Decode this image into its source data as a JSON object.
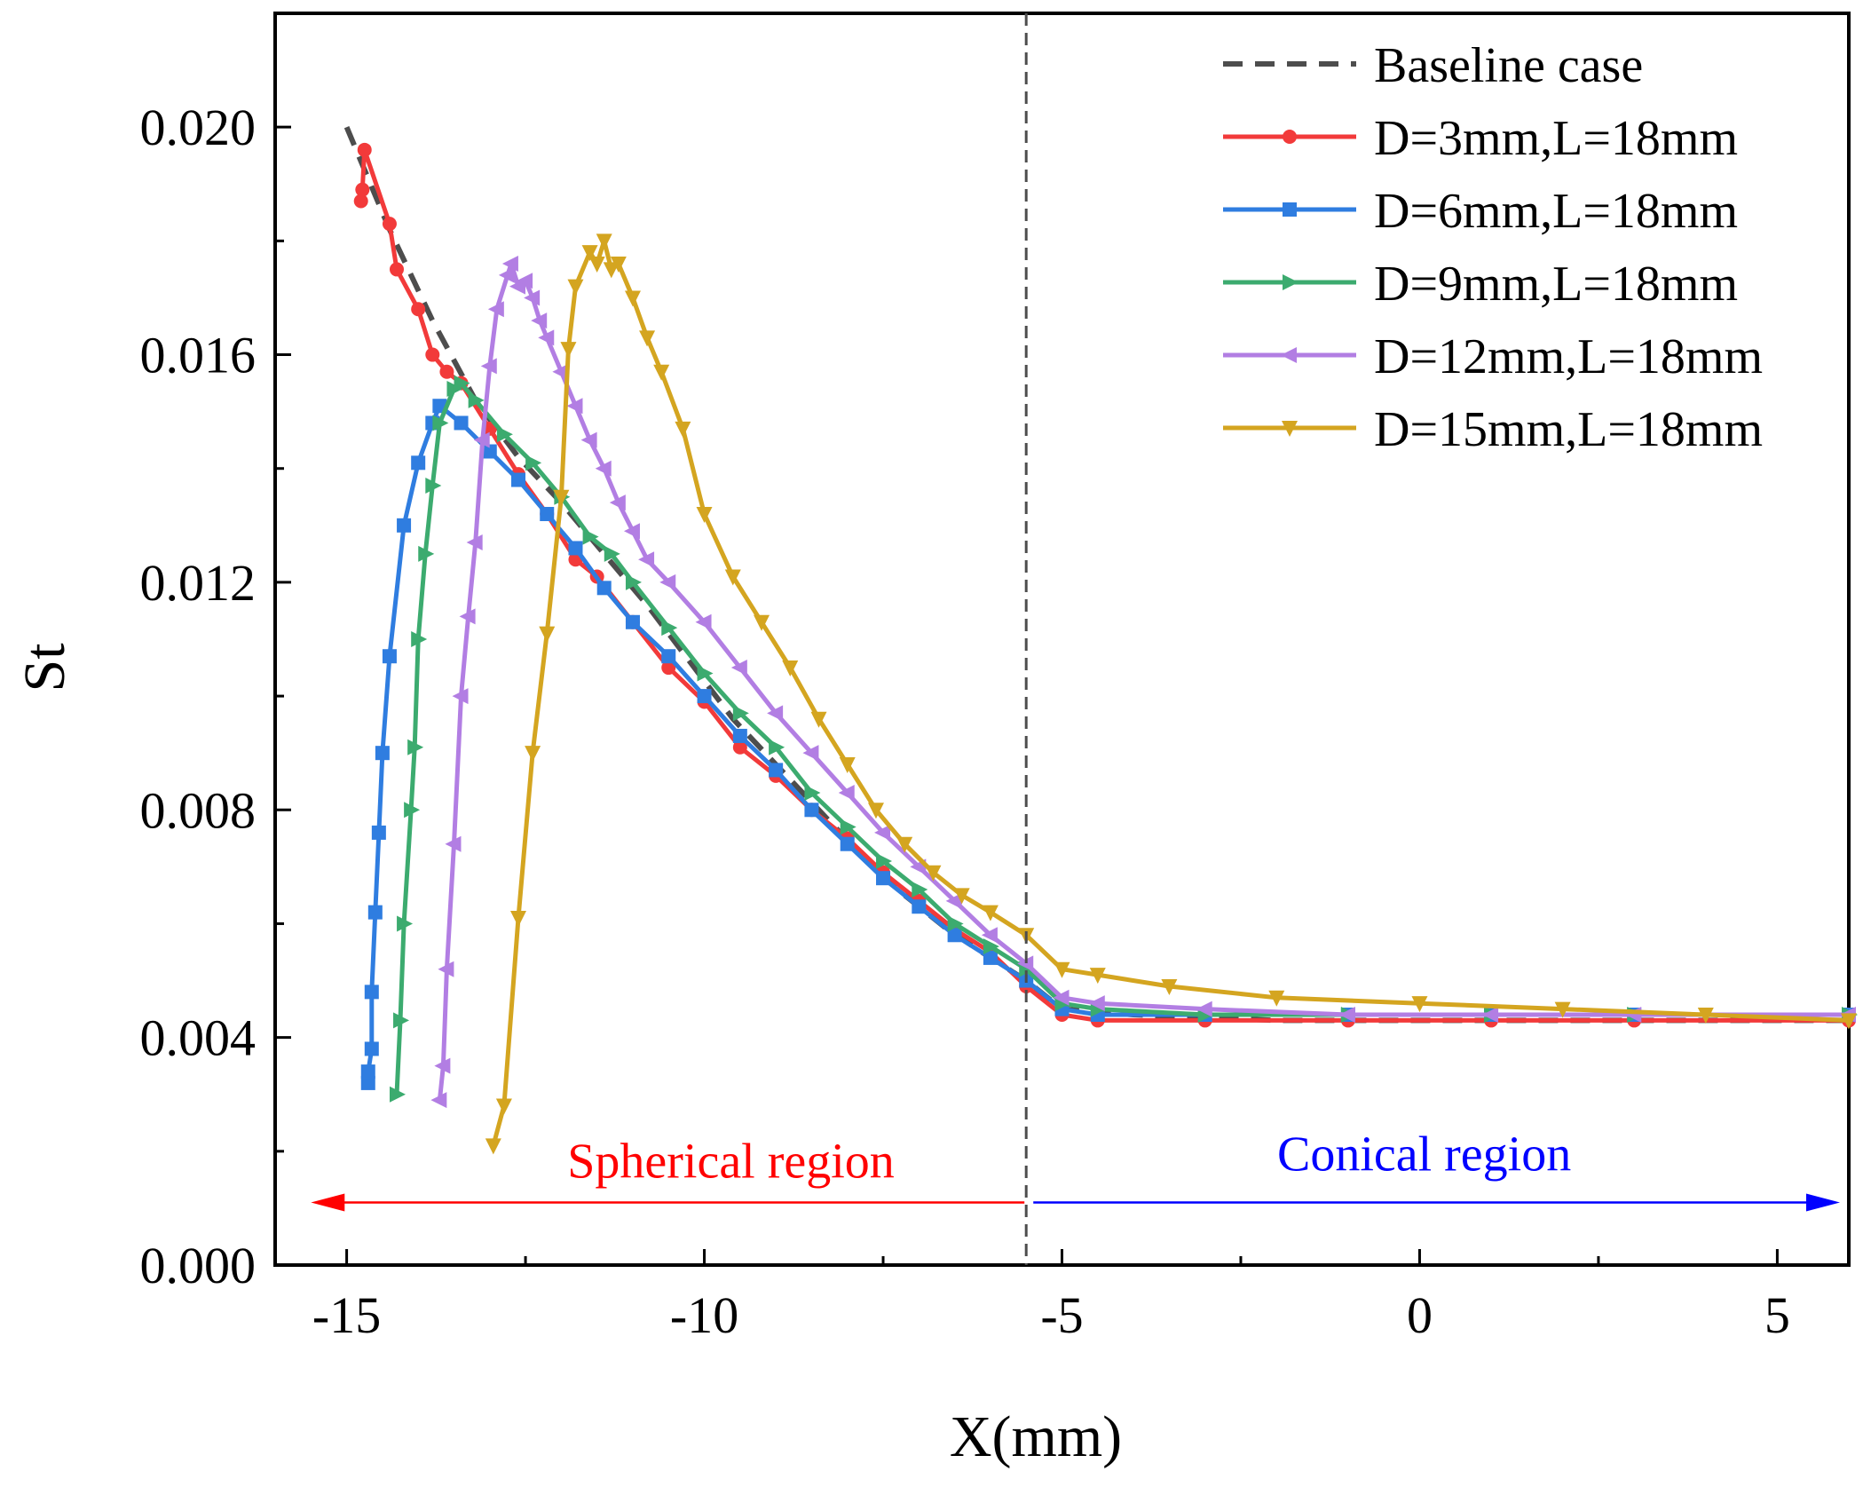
{
  "chart_data": {
    "type": "line",
    "xlabel": "X(mm)",
    "ylabel": "St",
    "xlim": [
      -16,
      6
    ],
    "ylim": [
      0,
      0.022
    ],
    "x_ticks": [
      -15,
      -10,
      -5,
      0,
      5
    ],
    "x_tick_labels": [
      "-15",
      "-10",
      "-5",
      "0",
      "5"
    ],
    "y_ticks": [
      0,
      0.004,
      0.008,
      0.012,
      0.016,
      0.02
    ],
    "y_tick_labels": [
      "0.000",
      "0.004",
      "0.008",
      "0.012",
      "0.016",
      "0.020"
    ],
    "divider_x": -5.5,
    "legend_position": "top-right",
    "annotations": {
      "spherical": {
        "text": "Spherical region",
        "x_from": -5.5,
        "x_to": -15.5,
        "y": 0.0011,
        "color": "#ff0000"
      },
      "conical": {
        "text": "Conical region",
        "x_from": -5.5,
        "x_to": 6,
        "y": 0.0011,
        "color": "#0000ff"
      }
    },
    "series": [
      {
        "name": "Baseline case",
        "color": "#4d4d4d",
        "style": "dashed",
        "marker": "none",
        "points": [
          [
            -15.0,
            0.02
          ],
          [
            -14.4,
            0.0182
          ],
          [
            -13.8,
            0.0166
          ],
          [
            -13.2,
            0.0152
          ],
          [
            -12.6,
            0.0142
          ],
          [
            -12.0,
            0.0134
          ],
          [
            -11.4,
            0.0125
          ],
          [
            -10.8,
            0.0116
          ],
          [
            -10.2,
            0.0106
          ],
          [
            -9.6,
            0.0096
          ],
          [
            -9.0,
            0.0088
          ],
          [
            -8.4,
            0.008
          ],
          [
            -7.8,
            0.0072
          ],
          [
            -7.2,
            0.0065
          ],
          [
            -6.6,
            0.0059
          ],
          [
            -6.0,
            0.0054
          ],
          [
            -5.5,
            0.005
          ],
          [
            -5.0,
            0.0045
          ],
          [
            -4.0,
            0.0044
          ],
          [
            -2.0,
            0.0043
          ],
          [
            0.0,
            0.0043
          ],
          [
            2.0,
            0.0043
          ],
          [
            4.0,
            0.0043
          ],
          [
            6.0,
            0.0043
          ]
        ]
      },
      {
        "name": "D=3mm,L=18mm",
        "color": "#f23a3a",
        "style": "solid",
        "marker": "circle",
        "points": [
          [
            -14.8,
            0.0187
          ],
          [
            -14.78,
            0.0189
          ],
          [
            -14.75,
            0.0196
          ],
          [
            -14.4,
            0.0183
          ],
          [
            -14.3,
            0.0175
          ],
          [
            -14.0,
            0.0168
          ],
          [
            -13.8,
            0.016
          ],
          [
            -13.6,
            0.0157
          ],
          [
            -13.4,
            0.0155
          ],
          [
            -13.0,
            0.0147
          ],
          [
            -12.6,
            0.0139
          ],
          [
            -12.2,
            0.0132
          ],
          [
            -11.8,
            0.0124
          ],
          [
            -11.5,
            0.0121
          ],
          [
            -11.0,
            0.0113
          ],
          [
            -10.5,
            0.0105
          ],
          [
            -10.0,
            0.0099
          ],
          [
            -9.5,
            0.0091
          ],
          [
            -9.0,
            0.0086
          ],
          [
            -8.5,
            0.008
          ],
          [
            -8.0,
            0.0075
          ],
          [
            -7.5,
            0.0069
          ],
          [
            -7.0,
            0.0064
          ],
          [
            -6.5,
            0.0059
          ],
          [
            -6.0,
            0.0055
          ],
          [
            -5.5,
            0.0049
          ],
          [
            -5.0,
            0.0044
          ],
          [
            -4.5,
            0.0043
          ],
          [
            -3.0,
            0.0043
          ],
          [
            -1.0,
            0.0043
          ],
          [
            1.0,
            0.0043
          ],
          [
            3.0,
            0.0043
          ],
          [
            6.0,
            0.0043
          ]
        ]
      },
      {
        "name": "D=6mm,L=18mm",
        "color": "#2f7de0",
        "style": "solid",
        "marker": "square",
        "points": [
          [
            -14.7,
            0.0032
          ],
          [
            -14.7,
            0.0034
          ],
          [
            -14.65,
            0.0038
          ],
          [
            -14.65,
            0.0048
          ],
          [
            -14.6,
            0.0062
          ],
          [
            -14.55,
            0.0076
          ],
          [
            -14.5,
            0.009
          ],
          [
            -14.4,
            0.0107
          ],
          [
            -14.2,
            0.013
          ],
          [
            -14.0,
            0.0141
          ],
          [
            -13.8,
            0.0148
          ],
          [
            -13.7,
            0.0151
          ],
          [
            -13.4,
            0.0148
          ],
          [
            -13.0,
            0.0143
          ],
          [
            -12.6,
            0.0138
          ],
          [
            -12.2,
            0.0132
          ],
          [
            -11.8,
            0.0126
          ],
          [
            -11.4,
            0.0119
          ],
          [
            -11.0,
            0.0113
          ],
          [
            -10.5,
            0.0107
          ],
          [
            -10.0,
            0.01
          ],
          [
            -9.5,
            0.0093
          ],
          [
            -9.0,
            0.0087
          ],
          [
            -8.5,
            0.008
          ],
          [
            -8.0,
            0.0074
          ],
          [
            -7.5,
            0.0068
          ],
          [
            -7.0,
            0.0063
          ],
          [
            -6.5,
            0.0058
          ],
          [
            -6.0,
            0.0054
          ],
          [
            -5.5,
            0.005
          ],
          [
            -5.0,
            0.0045
          ],
          [
            -4.5,
            0.0044
          ],
          [
            -3.0,
            0.0044
          ],
          [
            -1.0,
            0.0044
          ],
          [
            1.0,
            0.0044
          ],
          [
            3.0,
            0.0044
          ],
          [
            6.0,
            0.0044
          ]
        ]
      },
      {
        "name": "D=9mm,L=18mm",
        "color": "#3cab6f",
        "style": "solid",
        "marker": "triangle-right",
        "points": [
          [
            -14.3,
            0.003
          ],
          [
            -14.25,
            0.0043
          ],
          [
            -14.2,
            0.006
          ],
          [
            -14.1,
            0.008
          ],
          [
            -14.05,
            0.0091
          ],
          [
            -14.0,
            0.011
          ],
          [
            -13.9,
            0.0125
          ],
          [
            -13.8,
            0.0137
          ],
          [
            -13.7,
            0.0148
          ],
          [
            -13.5,
            0.0154
          ],
          [
            -13.4,
            0.0155
          ],
          [
            -13.2,
            0.0152
          ],
          [
            -12.8,
            0.0146
          ],
          [
            -12.4,
            0.0141
          ],
          [
            -12.0,
            0.0135
          ],
          [
            -11.6,
            0.0128
          ],
          [
            -11.3,
            0.0125
          ],
          [
            -11.0,
            0.012
          ],
          [
            -10.5,
            0.0112
          ],
          [
            -10.0,
            0.0104
          ],
          [
            -9.5,
            0.0097
          ],
          [
            -9.0,
            0.0091
          ],
          [
            -8.5,
            0.0083
          ],
          [
            -8.0,
            0.0077
          ],
          [
            -7.5,
            0.0071
          ],
          [
            -7.0,
            0.0066
          ],
          [
            -6.5,
            0.006
          ],
          [
            -6.0,
            0.0056
          ],
          [
            -5.5,
            0.0052
          ],
          [
            -5.0,
            0.0046
          ],
          [
            -4.5,
            0.0045
          ],
          [
            -3.0,
            0.0044
          ],
          [
            -1.0,
            0.0044
          ],
          [
            1.0,
            0.0044
          ],
          [
            3.0,
            0.0044
          ],
          [
            6.0,
            0.0044
          ]
        ]
      },
      {
        "name": "D=12mm,L=18mm",
        "color": "#b27ee3",
        "style": "solid",
        "marker": "triangle-left",
        "points": [
          [
            -13.7,
            0.0029
          ],
          [
            -13.65,
            0.0035
          ],
          [
            -13.6,
            0.0052
          ],
          [
            -13.5,
            0.0074
          ],
          [
            -13.4,
            0.01
          ],
          [
            -13.3,
            0.0114
          ],
          [
            -13.2,
            0.0127
          ],
          [
            -13.1,
            0.0145
          ],
          [
            -13.0,
            0.0158
          ],
          [
            -12.9,
            0.0168
          ],
          [
            -12.75,
            0.0174
          ],
          [
            -12.7,
            0.0176
          ],
          [
            -12.6,
            0.0172
          ],
          [
            -12.5,
            0.0173
          ],
          [
            -12.4,
            0.017
          ],
          [
            -12.3,
            0.0166
          ],
          [
            -12.2,
            0.0163
          ],
          [
            -12.0,
            0.0157
          ],
          [
            -11.8,
            0.0151
          ],
          [
            -11.6,
            0.0145
          ],
          [
            -11.4,
            0.014
          ],
          [
            -11.2,
            0.0134
          ],
          [
            -11.0,
            0.0129
          ],
          [
            -10.8,
            0.0124
          ],
          [
            -10.5,
            0.012
          ],
          [
            -10.0,
            0.0113
          ],
          [
            -9.5,
            0.0105
          ],
          [
            -9.0,
            0.0097
          ],
          [
            -8.5,
            0.009
          ],
          [
            -8.0,
            0.0083
          ],
          [
            -7.5,
            0.0076
          ],
          [
            -7.0,
            0.007
          ],
          [
            -6.5,
            0.0064
          ],
          [
            -6.0,
            0.0058
          ],
          [
            -5.5,
            0.0053
          ],
          [
            -5.0,
            0.0047
          ],
          [
            -4.5,
            0.0046
          ],
          [
            -3.0,
            0.0045
          ],
          [
            -1.0,
            0.0044
          ],
          [
            1.0,
            0.0044
          ],
          [
            3.0,
            0.0044
          ],
          [
            6.0,
            0.0044
          ]
        ]
      },
      {
        "name": "D=15mm,L=18mm",
        "color": "#d4a520",
        "style": "solid",
        "marker": "triangle-down",
        "points": [
          [
            -12.95,
            0.0021
          ],
          [
            -12.8,
            0.0028
          ],
          [
            -12.6,
            0.0061
          ],
          [
            -12.4,
            0.009
          ],
          [
            -12.2,
            0.0111
          ],
          [
            -12.0,
            0.0135
          ],
          [
            -11.9,
            0.0161
          ],
          [
            -11.8,
            0.0172
          ],
          [
            -11.6,
            0.0178
          ],
          [
            -11.5,
            0.0176
          ],
          [
            -11.4,
            0.018
          ],
          [
            -11.3,
            0.0175
          ],
          [
            -11.2,
            0.0176
          ],
          [
            -11.0,
            0.017
          ],
          [
            -10.8,
            0.0163
          ],
          [
            -10.6,
            0.0157
          ],
          [
            -10.3,
            0.0147
          ],
          [
            -10.0,
            0.0132
          ],
          [
            -9.6,
            0.0121
          ],
          [
            -9.2,
            0.0113
          ],
          [
            -8.8,
            0.0105
          ],
          [
            -8.4,
            0.0096
          ],
          [
            -8.0,
            0.0088
          ],
          [
            -7.6,
            0.008
          ],
          [
            -7.2,
            0.0074
          ],
          [
            -6.8,
            0.0069
          ],
          [
            -6.4,
            0.0065
          ],
          [
            -6.0,
            0.0062
          ],
          [
            -5.5,
            0.0058
          ],
          [
            -5.0,
            0.0052
          ],
          [
            -4.5,
            0.0051
          ],
          [
            -3.5,
            0.0049
          ],
          [
            -2.0,
            0.0047
          ],
          [
            0.0,
            0.0046
          ],
          [
            2.0,
            0.0045
          ],
          [
            4.0,
            0.0044
          ],
          [
            6.0,
            0.0043
          ]
        ]
      }
    ]
  }
}
